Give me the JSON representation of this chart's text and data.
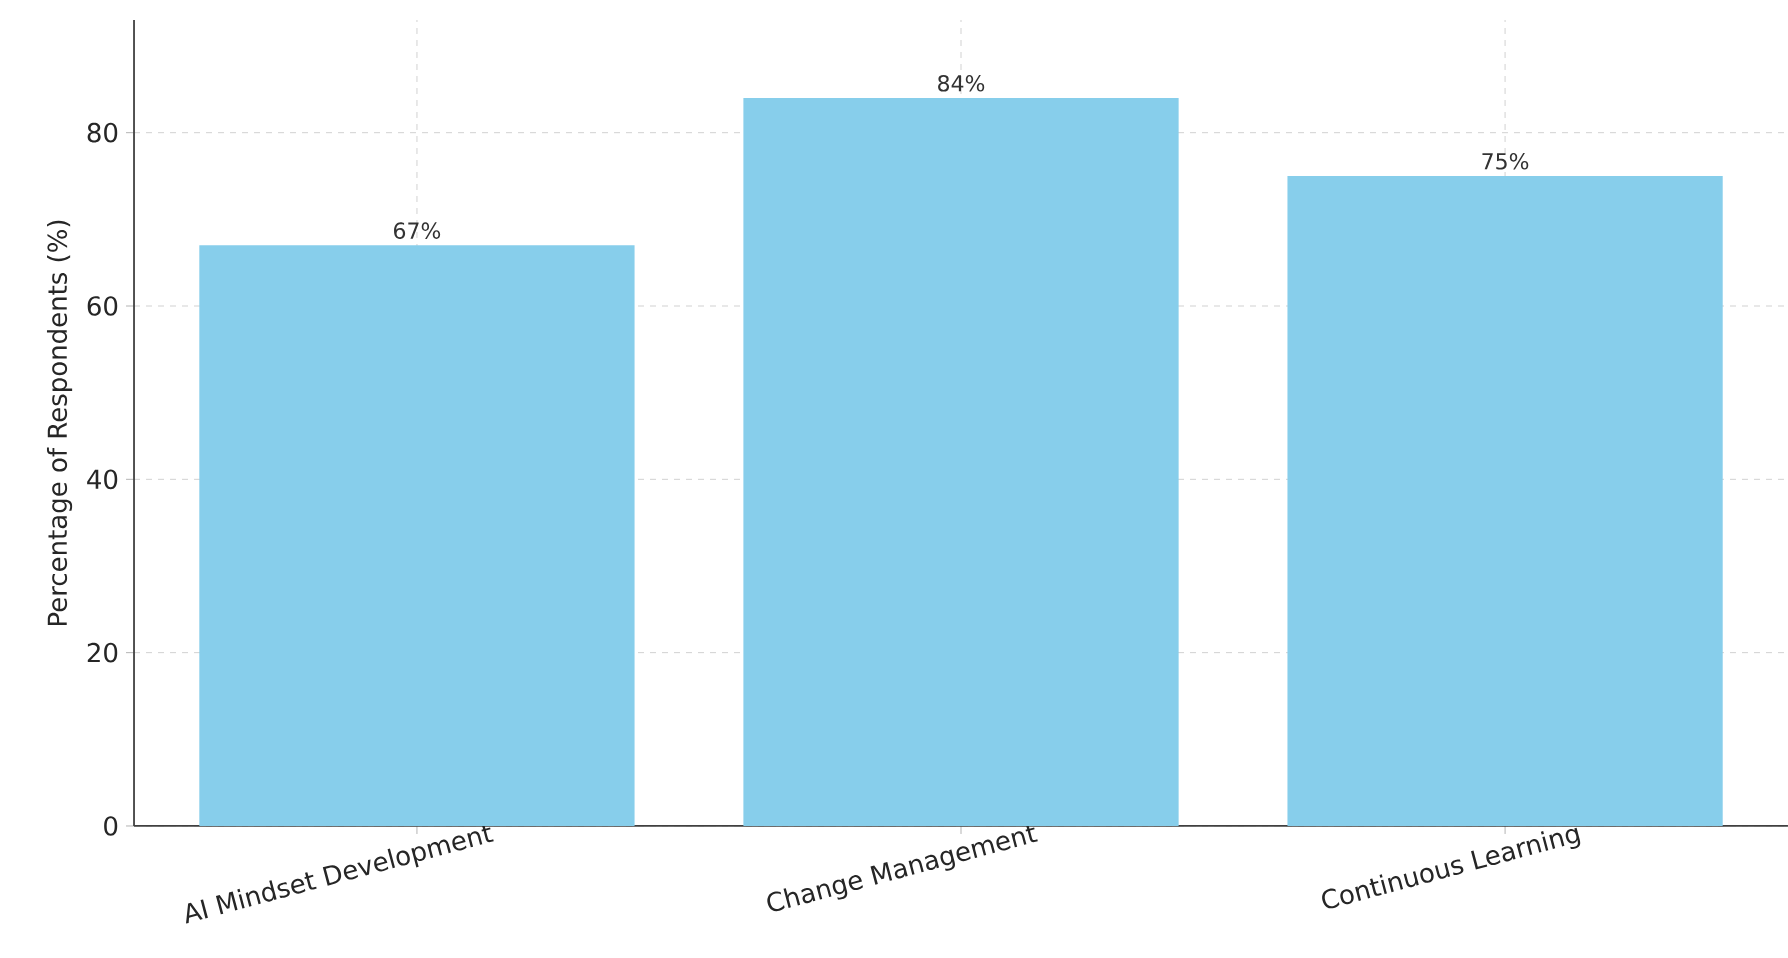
{
  "chart_data": {
    "type": "bar",
    "ylabel": "Percentage of Respondents (%)",
    "categories": [
      "AI Mindset Development",
      "Change Management",
      "Continuous Learning"
    ],
    "values": [
      67,
      84,
      75
    ],
    "value_labels": [
      "67%",
      "84%",
      "75%"
    ],
    "color": "#87ceeb",
    "ylim": [
      0,
      93
    ],
    "yticks": [
      0,
      20,
      40,
      60,
      80
    ],
    "grid": true
  }
}
